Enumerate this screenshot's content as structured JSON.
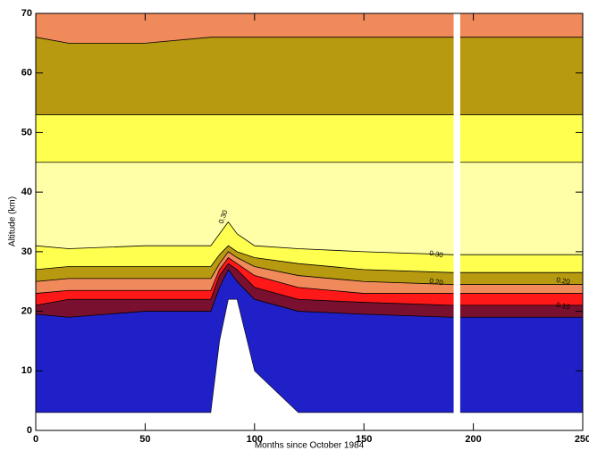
{
  "chart_data": {
    "type": "contour",
    "xlabel": "Months since October 1984",
    "ylabel": "Altitude (km)",
    "xlim": [
      0,
      250
    ],
    "ylim": [
      0,
      70
    ],
    "xticks": [
      0,
      50,
      100,
      150,
      200,
      250
    ],
    "yticks": [
      0,
      10,
      20,
      30,
      40,
      50,
      60,
      70
    ],
    "x": [
      0,
      15,
      50,
      80,
      84,
      88,
      92,
      100,
      120,
      150,
      190,
      196,
      250
    ],
    "floor": [
      3,
      3,
      3,
      3,
      15,
      22,
      22,
      10,
      3,
      3,
      3,
      3,
      3
    ],
    "series": [
      {
        "color": "#2020c8",
        "values": [
          19.5,
          19,
          20,
          20,
          24,
          27,
          25,
          22,
          20,
          19.5,
          19,
          19,
          19
        ]
      },
      {
        "color": "#7a1030",
        "values": [
          21,
          22,
          22,
          22,
          26,
          28,
          27,
          24,
          22,
          21.5,
          21,
          21,
          21
        ]
      },
      {
        "color": "#ff1818",
        "values": [
          23,
          23.5,
          23.5,
          23.5,
          27,
          29,
          28,
          26,
          24,
          23,
          23,
          23,
          23
        ]
      },
      {
        "color": "#f08a5a",
        "values": [
          25,
          25.5,
          25.5,
          25.5,
          28,
          30,
          29,
          27.5,
          26,
          25,
          24.5,
          24.5,
          24.5
        ]
      },
      {
        "color": "#b89a10",
        "values": [
          27,
          27.5,
          27.5,
          27.5,
          29.5,
          31,
          30,
          29,
          28,
          27,
          26.5,
          26.5,
          26.5
        ]
      },
      {
        "color": "#ffff50",
        "values": [
          31,
          30.5,
          31,
          31,
          33,
          35,
          33,
          31,
          30.5,
          30,
          29.5,
          29.5,
          29.5
        ]
      },
      {
        "color": "#ffffa8",
        "values": [
          45,
          45,
          45,
          45,
          45,
          45,
          45,
          45,
          45,
          45,
          45,
          45,
          45
        ]
      },
      {
        "color": "#ffff50",
        "values": [
          53,
          53,
          53,
          53,
          53,
          53,
          53,
          53,
          53,
          53,
          53,
          53,
          53
        ]
      },
      {
        "color": "#b89a10",
        "values": [
          66,
          65,
          65,
          66,
          66,
          66,
          66,
          66,
          66,
          66,
          66,
          66,
          66
        ]
      }
    ],
    "top_color": "#f08a5a",
    "gap": [
      191,
      194
    ],
    "contour_labels": [
      "0.30",
      "0.30",
      "0.20",
      "0.20",
      "0.10"
    ]
  }
}
